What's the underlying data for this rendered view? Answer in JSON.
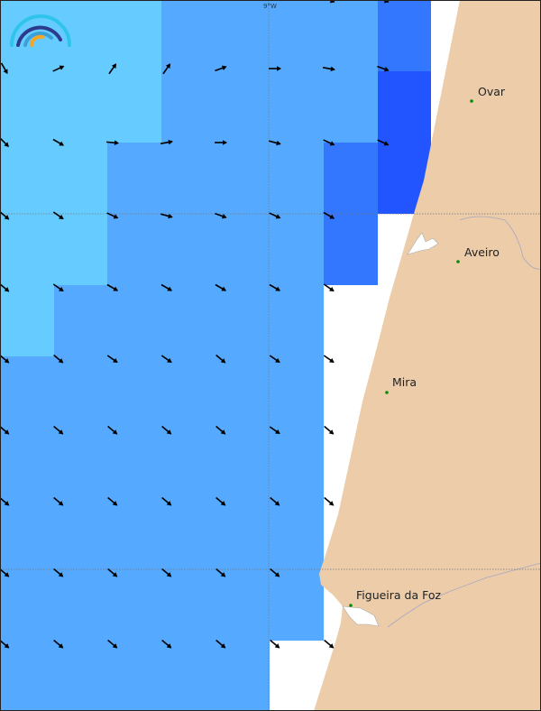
{
  "map": {
    "graticule_label": "9°W",
    "colors": {
      "land": "#eccca9",
      "sea": "#ffffff",
      "level_1": "#66ccff",
      "level_2": "#55aaff",
      "level_3": "#3377ff",
      "level_4": "#2255ff",
      "city_dot": "#0a8a0a",
      "arrow": "#000000"
    },
    "cell_levels": [
      [
        1,
        1,
        1,
        2,
        2,
        2,
        2,
        3
      ],
      [
        1,
        1,
        1,
        2,
        2,
        2,
        2,
        4
      ],
      [
        1,
        1,
        2,
        2,
        2,
        2,
        3,
        4
      ],
      [
        1,
        1,
        2,
        2,
        2,
        2,
        3,
        0
      ],
      [
        1,
        2,
        2,
        2,
        2,
        2,
        0,
        0
      ],
      [
        2,
        2,
        2,
        2,
        2,
        2,
        0,
        0
      ],
      [
        2,
        2,
        2,
        2,
        2,
        2,
        0,
        0
      ],
      [
        2,
        2,
        2,
        2,
        2,
        2,
        0,
        0
      ],
      [
        2,
        2,
        2,
        2,
        2,
        2,
        0,
        0
      ],
      [
        2,
        2,
        2,
        2,
        2,
        0,
        0,
        0
      ]
    ],
    "arrow_directions_deg": [
      [
        null,
        null,
        null,
        null,
        null,
        null,
        20,
        20
      ],
      [
        60,
        -25,
        -55,
        -55,
        -20,
        0,
        10,
        20
      ],
      [
        45,
        30,
        5,
        -10,
        0,
        15,
        25,
        25
      ],
      [
        40,
        35,
        25,
        15,
        20,
        25,
        30,
        null
      ],
      [
        40,
        35,
        30,
        30,
        30,
        30,
        35,
        null
      ],
      [
        40,
        40,
        35,
        35,
        40,
        35,
        35,
        null
      ],
      [
        40,
        40,
        40,
        40,
        40,
        35,
        40,
        null
      ],
      [
        40,
        40,
        40,
        40,
        40,
        40,
        40,
        null
      ],
      [
        40,
        40,
        40,
        40,
        40,
        40,
        null,
        null
      ],
      [
        40,
        40,
        40,
        40,
        40,
        40,
        40,
        null
      ]
    ],
    "cities": [
      {
        "name": "Ovar"
      },
      {
        "name": "Aveiro"
      },
      {
        "name": "Mira"
      },
      {
        "name": "Figueira da Foz"
      }
    ]
  }
}
